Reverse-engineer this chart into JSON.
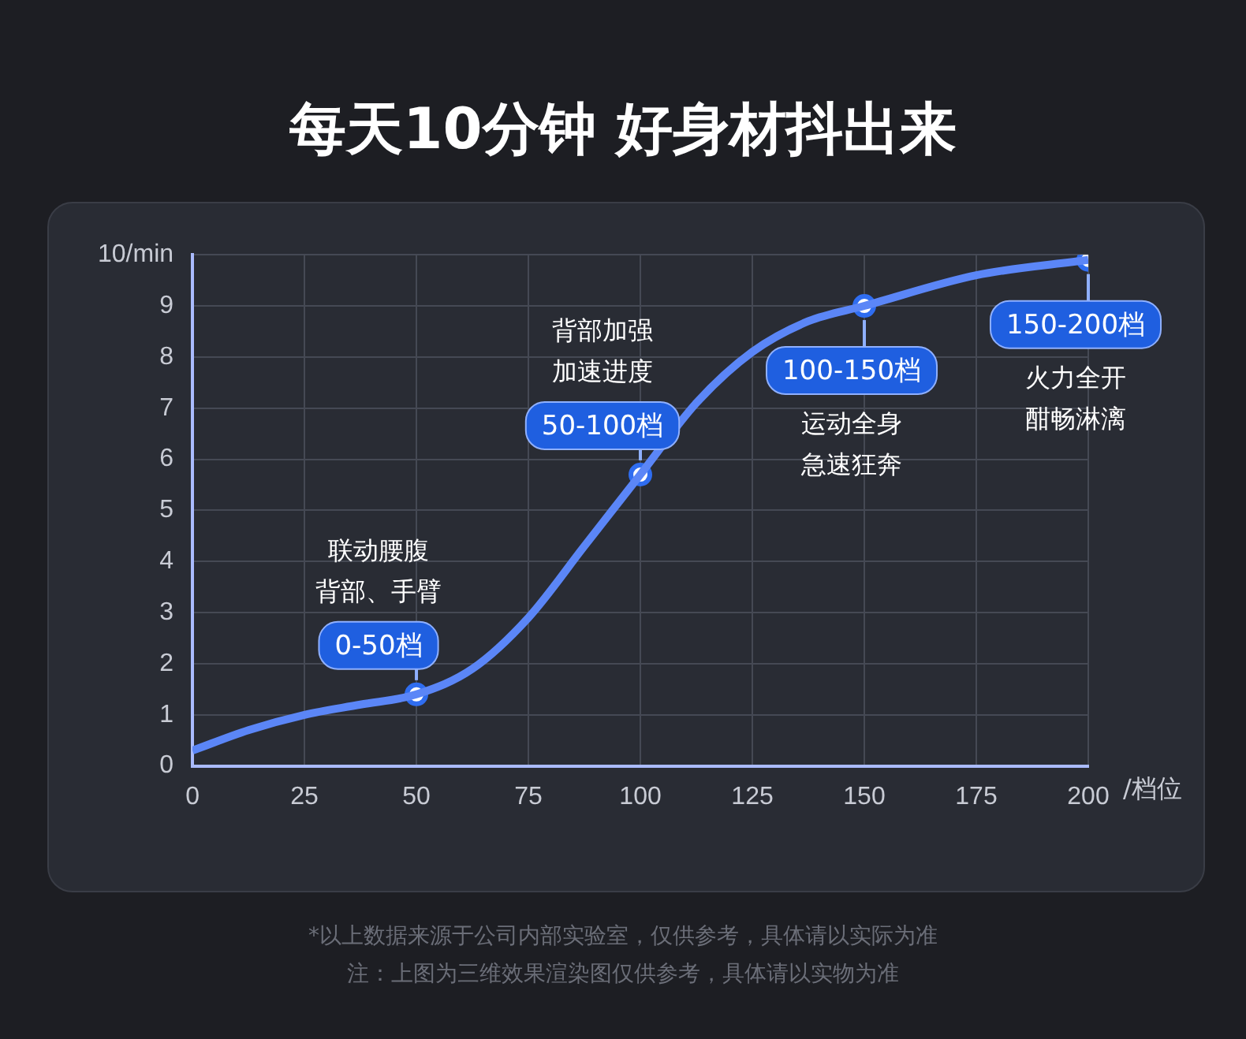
{
  "chart_data": {
    "type": "line",
    "title": "每天10分钟 好身材抖出来",
    "xlabel": "/档位",
    "xlim": [
      0,
      200
    ],
    "xticks": [
      0,
      25,
      50,
      75,
      100,
      125,
      150,
      175,
      200
    ],
    "ylim": [
      0,
      10
    ],
    "yticks": [
      0,
      1,
      2,
      3,
      4,
      5,
      6,
      7,
      8,
      9,
      {
        "value": 10,
        "label": "10/min"
      }
    ],
    "grid": true,
    "legend": false,
    "series": [
      {
        "type": "line",
        "color": "#5b86f7",
        "marker": "none",
        "x": [
          0,
          12.5,
          25,
          37.5,
          50,
          62.5,
          75,
          87.5,
          100,
          112.5,
          125,
          137.5,
          150,
          175,
          200
        ],
        "values": [
          0.3,
          0.7,
          1.0,
          1.2,
          1.4,
          1.9,
          2.9,
          4.3,
          5.7,
          7.1,
          8.1,
          8.7,
          9.0,
          9.6,
          9.9
        ]
      },
      {
        "type": "scatter",
        "color": "#ffffff",
        "marker": "circle",
        "x": [
          50,
          100,
          150,
          200
        ],
        "values": [
          1.4,
          5.7,
          9.0,
          9.9
        ]
      }
    ],
    "annotations": [
      {
        "text": "0-50档",
        "x": 50,
        "y": 1.4
      },
      "联动腰腹背部、手臂",
      {
        "text": "50-100档",
        "x": 100,
        "y": 5.7
      },
      "背部加强加速进度",
      {
        "text": "100-150档",
        "x": 150,
        "y": 9.0
      },
      "运动全身急速狂奔",
      {
        "text": "150-200档",
        "x": 200,
        "y": 9.9
      },
      "火力全开酣畅淋漓",
      "*以上数据来源于公司内部实验室，仅供参考，具体请以实际为准",
      "注：上图为三维效果渲染图仅供参考，具体请以实物为准"
    ]
  }
}
